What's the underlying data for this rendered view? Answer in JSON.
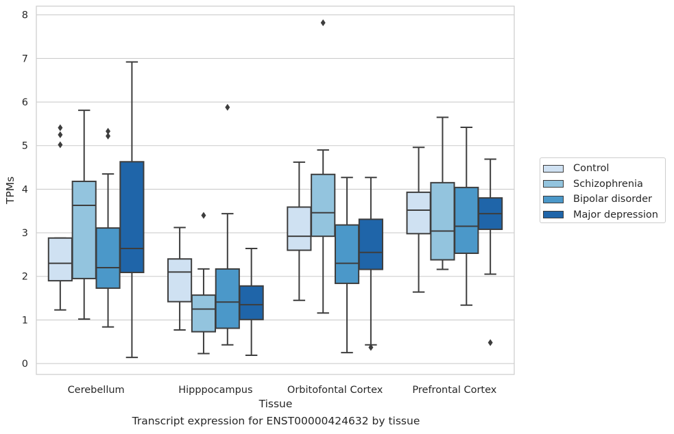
{
  "chart_data": {
    "type": "boxplot",
    "title": "",
    "caption": "Transcript expression for ENST00000424632 by tissue",
    "xlabel": "Tissue",
    "ylabel": "TPMs",
    "ylim": [
      -0.25,
      8.2
    ],
    "yticks": [
      "0",
      "1",
      "2",
      "3",
      "4",
      "5",
      "6",
      "7",
      "8"
    ],
    "grid": true,
    "legend_position": "right",
    "categories": [
      "Cerebellum",
      "Hipppocampus",
      "Orbitofontal Cortex",
      "Prefrontal Cortex"
    ],
    "series": [
      {
        "name": "Control",
        "color": "#cfe1f2",
        "boxes": [
          {
            "whislo": 1.23,
            "q1": 1.9,
            "med": 2.3,
            "q3": 2.88,
            "whishi": 2.88,
            "fliers": [
              5.02,
              5.25,
              5.41
            ]
          },
          {
            "whislo": 0.77,
            "q1": 1.42,
            "med": 2.1,
            "q3": 2.4,
            "whishi": 3.12,
            "fliers": []
          },
          {
            "whislo": 1.45,
            "q1": 2.6,
            "med": 2.92,
            "q3": 3.59,
            "whishi": 4.62,
            "fliers": []
          },
          {
            "whislo": 1.64,
            "q1": 2.98,
            "med": 3.52,
            "q3": 3.93,
            "whishi": 4.96,
            "fliers": []
          }
        ]
      },
      {
        "name": "Schizophrenia",
        "color": "#93c4de",
        "boxes": [
          {
            "whislo": 1.02,
            "q1": 1.95,
            "med": 3.63,
            "q3": 4.18,
            "whishi": 5.81,
            "fliers": []
          },
          {
            "whislo": 0.23,
            "q1": 0.73,
            "med": 1.25,
            "q3": 1.57,
            "whishi": 2.17,
            "fliers": [
              3.4
            ]
          },
          {
            "whislo": 1.16,
            "q1": 2.92,
            "med": 3.46,
            "q3": 4.34,
            "whishi": 4.9,
            "fliers": [
              7.82
            ]
          },
          {
            "whislo": 2.16,
            "q1": 2.38,
            "med": 3.04,
            "q3": 4.15,
            "whishi": 5.65,
            "fliers": []
          }
        ]
      },
      {
        "name": "Bipolar disorder",
        "color": "#4b98c9",
        "boxes": [
          {
            "whislo": 0.84,
            "q1": 1.73,
            "med": 2.2,
            "q3": 3.11,
            "whishi": 4.35,
            "fliers": [
              5.22,
              5.33
            ]
          },
          {
            "whislo": 0.43,
            "q1": 0.81,
            "med": 1.41,
            "q3": 2.17,
            "whishi": 3.44,
            "fliers": [
              5.88
            ]
          },
          {
            "whislo": 0.25,
            "q1": 1.84,
            "med": 2.3,
            "q3": 3.18,
            "whishi": 4.27,
            "fliers": []
          },
          {
            "whislo": 1.34,
            "q1": 2.53,
            "med": 3.15,
            "q3": 4.04,
            "whishi": 5.42,
            "fliers": []
          }
        ]
      },
      {
        "name": "Major depression",
        "color": "#1f65a9",
        "boxes": [
          {
            "whislo": 0.14,
            "q1": 2.09,
            "med": 2.64,
            "q3": 4.63,
            "whishi": 6.92,
            "fliers": []
          },
          {
            "whislo": 0.19,
            "q1": 1.01,
            "med": 1.35,
            "q3": 1.78,
            "whishi": 2.64,
            "fliers": []
          },
          {
            "whislo": 0.43,
            "q1": 2.16,
            "med": 2.55,
            "q3": 3.31,
            "whishi": 4.27,
            "fliers": [
              0.37
            ]
          },
          {
            "whislo": 2.05,
            "q1": 3.08,
            "med": 3.44,
            "q3": 3.8,
            "whishi": 4.69,
            "fliers": [
              0.48
            ]
          }
        ]
      }
    ]
  }
}
